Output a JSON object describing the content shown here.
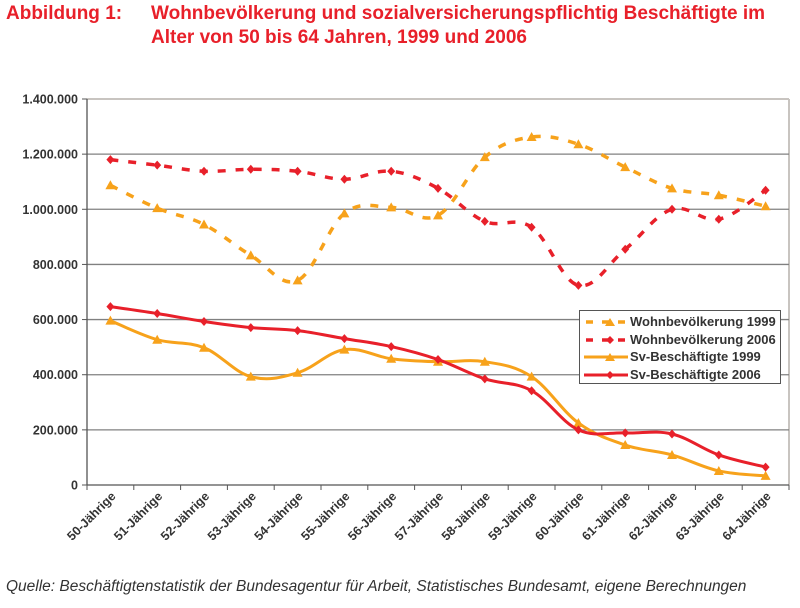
{
  "figure": {
    "label": "Abbildung 1:",
    "title_line1": "Wohnbevölkerung und sozialversicherungspflichtig Beschäftigte im",
    "title_line2": "Alter von 50 bis 64 Jahren, 1999 und 2006",
    "source": "Quelle: Beschäftigtenstatistik der Bundesagentur für Arbeit, Statistisches Bundesamt, eigene Berechnungen"
  },
  "colors": {
    "title": "#e8202a",
    "orange": "#f7a21b",
    "red": "#e8202a",
    "grid": "#808080",
    "border": "#c8c4c0",
    "text": "#333333"
  },
  "chart_data": {
    "type": "line",
    "title": "Wohnbevölkerung und sozialversicherungspflichtig Beschäftigte im Alter von 50 bis 64 Jahren, 1999 und 2006",
    "xlabel": "",
    "ylabel": "",
    "ylim": [
      0,
      1400000
    ],
    "yticks": [
      0,
      200000,
      400000,
      600000,
      800000,
      1000000,
      1200000,
      1400000
    ],
    "ytick_labels": [
      "0",
      "200.000",
      "400.000",
      "600.000",
      "800.000",
      "1.000.000",
      "1.200.000",
      "1.400.000"
    ],
    "grid": true,
    "legend_position": "center-right",
    "categories": [
      "50-Jährige",
      "51-Jährige",
      "52-Jährige",
      "53-Jährige",
      "54-Jährige",
      "55-Jährige",
      "56-Jährige",
      "57-Jährige",
      "58-Jährige",
      "59-Jährige",
      "60-Jährige",
      "61-Jährige",
      "62-Jährige",
      "63-Jährige",
      "64-Jährige"
    ],
    "series": [
      {
        "name": "Wohnbevölkerung 1999",
        "color": "#f7a21b",
        "style": "dashed",
        "marker": "triangle",
        "values": [
          1087000,
          1004000,
          945000,
          833000,
          742000,
          985000,
          1007000,
          978000,
          1189000,
          1262000,
          1236000,
          1153000,
          1076000,
          1051000,
          1011000
        ]
      },
      {
        "name": "Wohnbevölkerung 2006",
        "color": "#e8202a",
        "style": "dashed",
        "marker": "diamond",
        "values": [
          1180000,
          1160000,
          1138000,
          1145000,
          1138000,
          1109000,
          1138000,
          1076000,
          956000,
          935000,
          724000,
          855000,
          1000000,
          964000,
          1069000
        ]
      },
      {
        "name": "Sv-Beschäftigte 1999",
        "color": "#f7a21b",
        "style": "solid",
        "marker": "triangle",
        "values": [
          596000,
          527000,
          498000,
          393000,
          407000,
          491000,
          458000,
          447000,
          447000,
          393000,
          225000,
          145000,
          109000,
          51000,
          33000
        ]
      },
      {
        "name": "Sv-Beschäftigte 2006",
        "color": "#e8202a",
        "style": "solid",
        "marker": "diamond",
        "values": [
          647000,
          622000,
          593000,
          571000,
          560000,
          531000,
          502000,
          455000,
          385000,
          342000,
          200000,
          189000,
          185000,
          109000,
          65000
        ]
      }
    ]
  }
}
